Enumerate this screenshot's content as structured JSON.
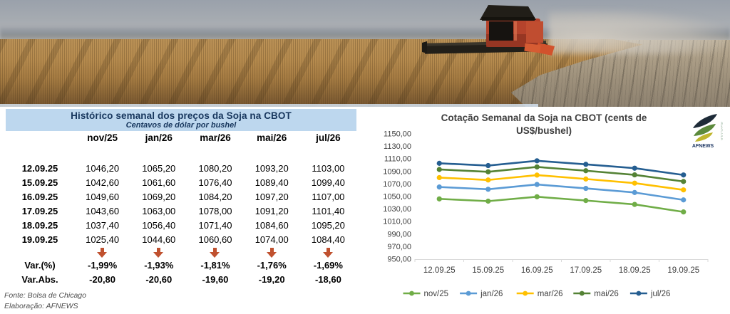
{
  "banner": {
    "subject": "combine-harvester-in-soybean-field"
  },
  "table": {
    "title": "Histórico semanal dos preços da Soja na CBOT",
    "subtitle": "Centavos de dólar por bushel",
    "columns": [
      "nov/25",
      "jan/26",
      "mar/26",
      "mai/26",
      "jul/26"
    ],
    "rows": [
      {
        "date": "12.09.25",
        "values": [
          "1046,20",
          "1065,20",
          "1080,20",
          "1093,20",
          "1103,00"
        ]
      },
      {
        "date": "15.09.25",
        "values": [
          "1042,60",
          "1061,60",
          "1076,40",
          "1089,40",
          "1099,40"
        ]
      },
      {
        "date": "16.09.25",
        "values": [
          "1049,60",
          "1069,20",
          "1084,20",
          "1097,20",
          "1107,00"
        ]
      },
      {
        "date": "17.09.25",
        "values": [
          "1043,60",
          "1063,00",
          "1078,00",
          "1091,20",
          "1101,40"
        ]
      },
      {
        "date": "18.09.25",
        "values": [
          "1037,40",
          "1056,40",
          "1071,40",
          "1084,60",
          "1095,20"
        ]
      },
      {
        "date": "19.09.25",
        "values": [
          "1025,40",
          "1044,60",
          "1060,60",
          "1074,00",
          "1084,40"
        ]
      }
    ],
    "trend_icon": "down-arrow",
    "var_pct": {
      "label": "Var.(%)",
      "values": [
        "-1,99%",
        "-1,93%",
        "-1,81%",
        "-1,76%",
        "-1,69%"
      ]
    },
    "var_abs": {
      "label": "Var.Abs.",
      "values": [
        "-20,80",
        "-20,60",
        "-19,60",
        "-19,20",
        "-18,60"
      ]
    },
    "source": "Fonte: Bolsa de Chicago",
    "elaboration": "Elaboração: AFNEWS"
  },
  "chart_data": {
    "type": "line",
    "title": "Cotação Semanal da Soja na CBOT (cents de US$/bushel)",
    "x": [
      "12.09.25",
      "15.09.25",
      "16.09.25",
      "17.09.25",
      "18.09.25",
      "19.09.25"
    ],
    "series": [
      {
        "name": "nov/25",
        "color": "#70AD47",
        "values": [
          1046.2,
          1042.6,
          1049.6,
          1043.6,
          1037.4,
          1025.4
        ]
      },
      {
        "name": "jan/26",
        "color": "#5B9BD5",
        "values": [
          1065.2,
          1061.6,
          1069.2,
          1063.0,
          1056.4,
          1044.6
        ]
      },
      {
        "name": "mar/26",
        "color": "#FFC000",
        "values": [
          1080.2,
          1076.4,
          1084.2,
          1078.0,
          1071.4,
          1060.6
        ]
      },
      {
        "name": "mai/26",
        "color": "#548235",
        "values": [
          1093.2,
          1089.4,
          1097.2,
          1091.2,
          1084.6,
          1074.0
        ]
      },
      {
        "name": "jul/26",
        "color": "#255E91",
        "values": [
          1103.0,
          1099.4,
          1107.0,
          1101.4,
          1095.2,
          1084.4
        ]
      }
    ],
    "xlabel": "",
    "ylabel": "",
    "ylim": [
      950,
      1150
    ],
    "ytick_step": 20,
    "ytick_labels": [
      "950,00",
      "970,00",
      "990,00",
      "1010,00",
      "1030,00",
      "1050,00",
      "1070,00",
      "1090,00",
      "1110,00",
      "1130,00",
      "1150,00"
    ],
    "grid": false,
    "markers": true,
    "legend_position": "bottom"
  },
  "logo": {
    "text": "AFNEWS",
    "vertical_text": "AGRICOLA"
  },
  "colors": {
    "table_header_bg": "#BDD7EE",
    "table_header_text": "#17365D",
    "arrow": "#C0512F",
    "axis_text": "#404040",
    "axis_line": "#D9D9D9",
    "chart_title_text": "#3F3F3F"
  }
}
